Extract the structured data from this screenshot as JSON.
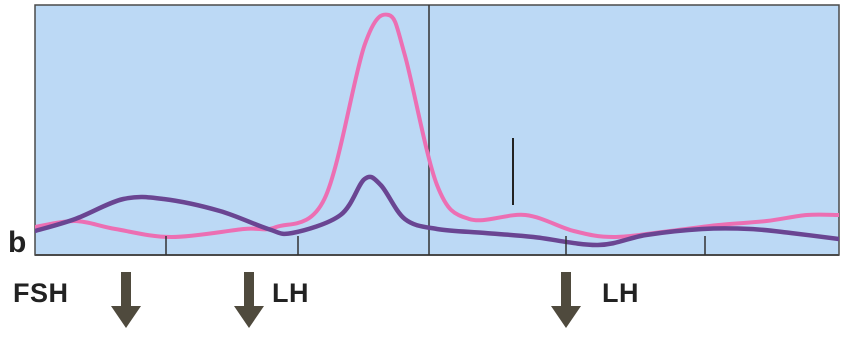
{
  "panel_label": "b",
  "hormone_labels": {
    "fsh": "FSH",
    "lh_first": "LH",
    "lh_second": "LH"
  },
  "colors": {
    "background": "#bcd9f5",
    "pink_curve": "#ec6fb3",
    "purple_curve": "#6a4592",
    "arrow": "#4f4a3d",
    "frame": "#4a4a4a"
  },
  "curves": {
    "pink": [
      [
        0,
        0.14
      ],
      [
        0.05,
        0.17
      ],
      [
        0.1,
        0.13
      ],
      [
        0.17,
        0.09
      ],
      [
        0.26,
        0.13
      ],
      [
        0.3,
        0.14
      ],
      [
        0.36,
        0.28
      ],
      [
        0.41,
        1.05
      ],
      [
        0.44,
        1.2
      ],
      [
        0.46,
        1.0
      ],
      [
        0.5,
        0.35
      ],
      [
        0.54,
        0.18
      ],
      [
        0.61,
        0.2
      ],
      [
        0.67,
        0.12
      ],
      [
        0.72,
        0.09
      ],
      [
        0.79,
        0.12
      ],
      [
        0.85,
        0.15
      ],
      [
        0.91,
        0.17
      ],
      [
        0.96,
        0.2
      ],
      [
        1.0,
        0.2
      ]
    ],
    "purple": [
      [
        0,
        0.12
      ],
      [
        0.05,
        0.18
      ],
      [
        0.11,
        0.28
      ],
      [
        0.16,
        0.28
      ],
      [
        0.23,
        0.22
      ],
      [
        0.29,
        0.13
      ],
      [
        0.32,
        0.11
      ],
      [
        0.38,
        0.2
      ],
      [
        0.41,
        0.38
      ],
      [
        0.43,
        0.35
      ],
      [
        0.46,
        0.18
      ],
      [
        0.5,
        0.13
      ],
      [
        0.56,
        0.11
      ],
      [
        0.62,
        0.09
      ],
      [
        0.7,
        0.05
      ],
      [
        0.76,
        0.1
      ],
      [
        0.83,
        0.13
      ],
      [
        0.89,
        0.13
      ],
      [
        0.94,
        0.11
      ],
      [
        1.0,
        0.08
      ]
    ]
  }
}
